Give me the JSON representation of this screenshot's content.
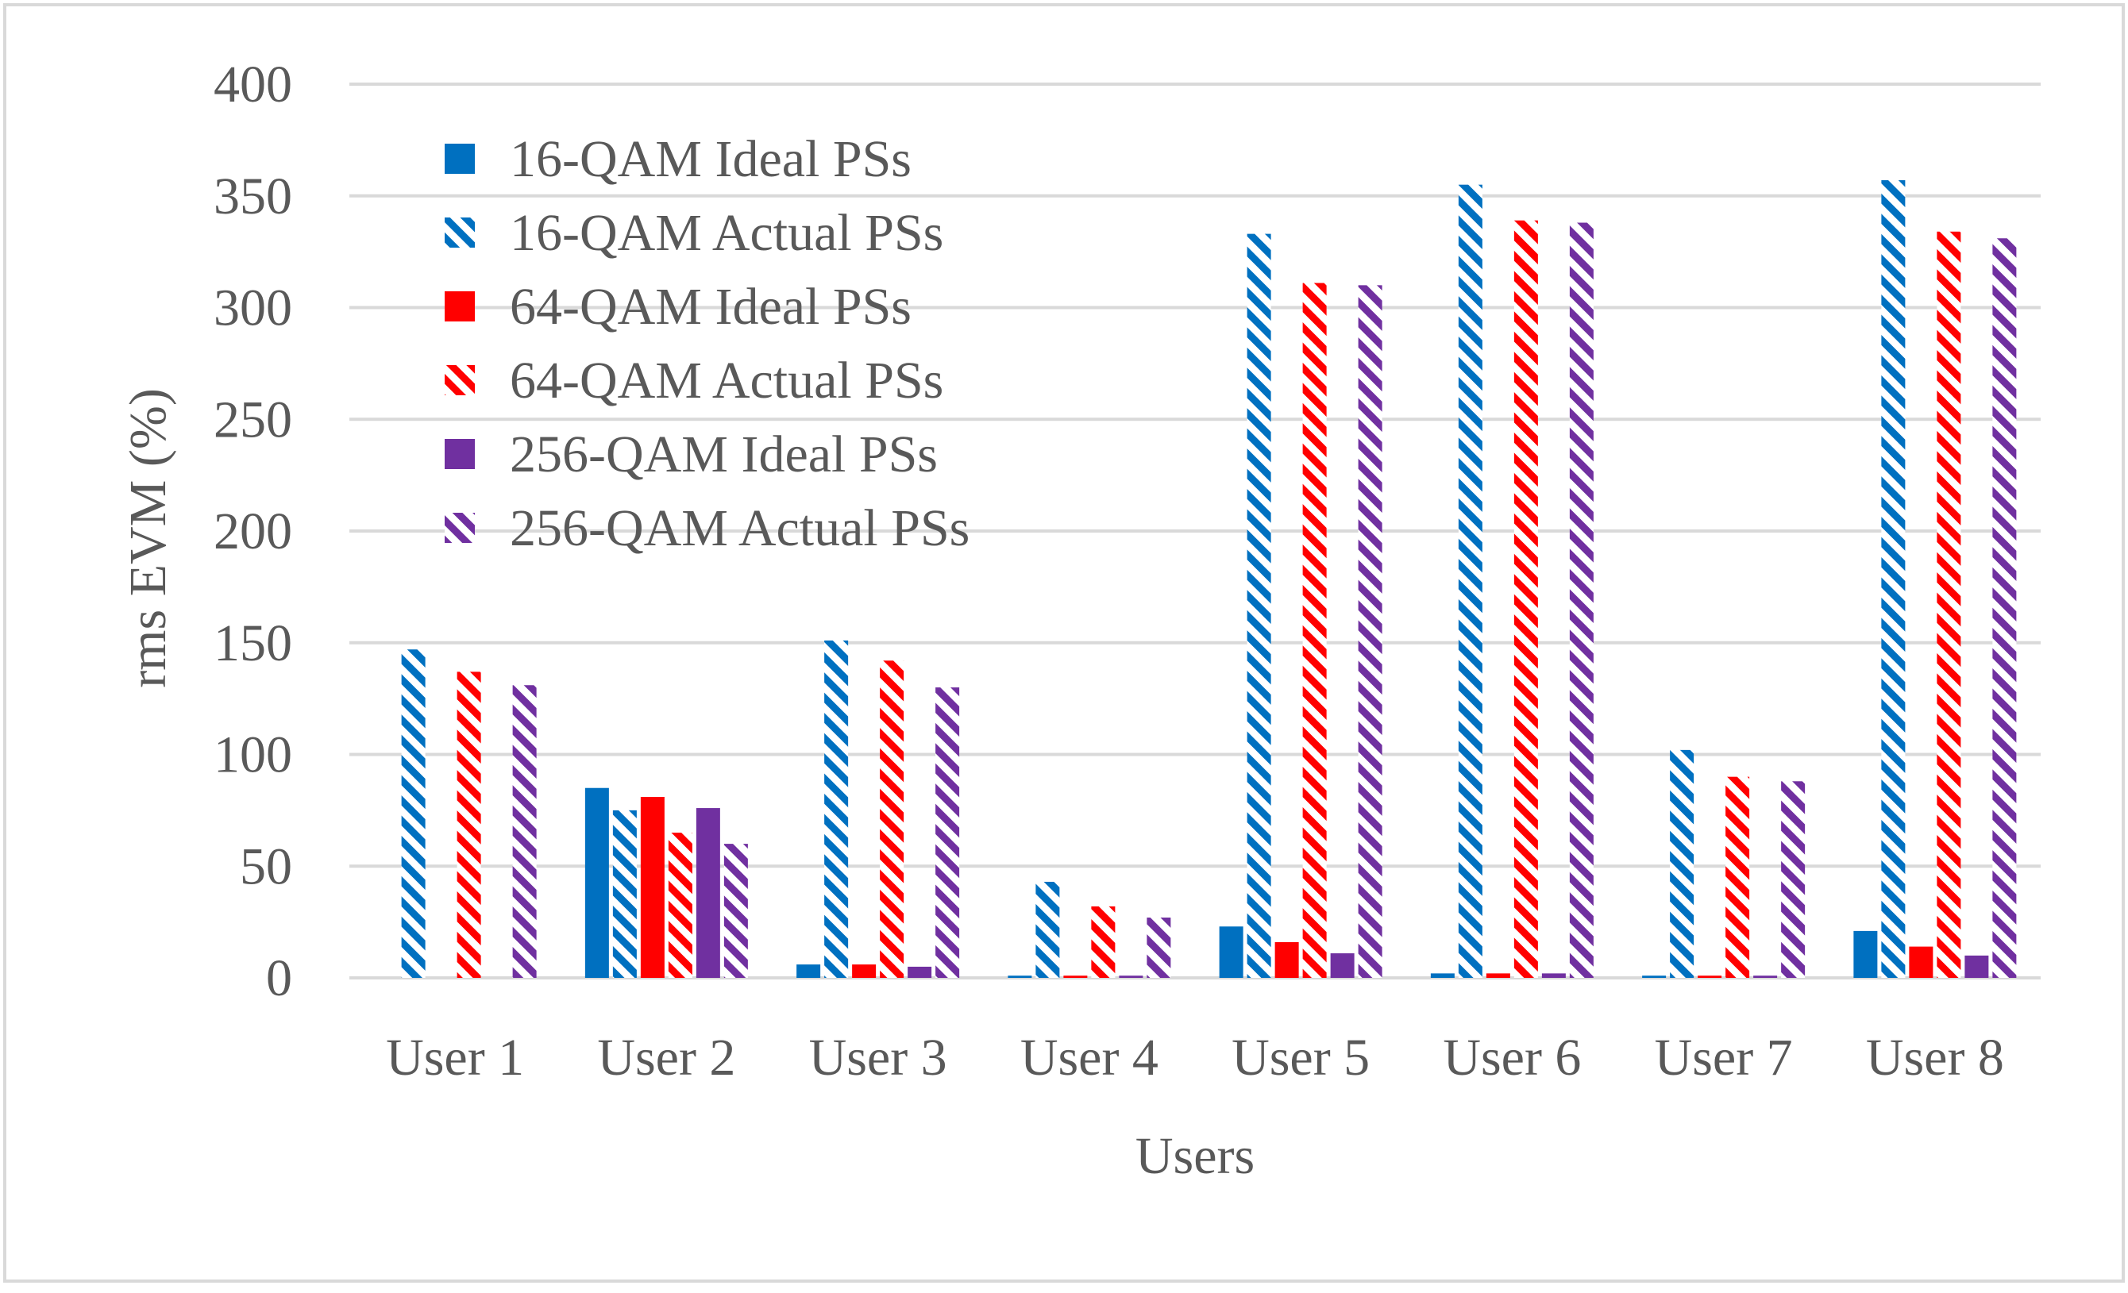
{
  "chart_data": {
    "type": "bar",
    "title": "",
    "xlabel": "Users",
    "ylabel": "rms EVM (%)",
    "ylim": [
      0,
      400
    ],
    "yticks": [
      "0",
      "50",
      "100",
      "150",
      "200",
      "250",
      "300",
      "350",
      "400"
    ],
    "grid": true,
    "legend_position": "top-left",
    "categories": [
      "User 1",
      "User 2",
      "User 3",
      "User 4",
      "User 5",
      "User 6",
      "User 7",
      "User 8"
    ],
    "series": [
      {
        "name": "16-QAM Ideal PSs",
        "color": "#0070C0",
        "pattern": "solid",
        "values": [
          0,
          85,
          6,
          1,
          23,
          2,
          1,
          21
        ]
      },
      {
        "name": "16-QAM Actual PSs",
        "color": "#0070C0",
        "pattern": "hatched",
        "values": [
          147,
          75,
          151,
          43,
          333,
          355,
          102,
          357
        ]
      },
      {
        "name": "64-QAM Ideal PSs",
        "color": "#FF0000",
        "pattern": "solid",
        "values": [
          0,
          81,
          6,
          1,
          16,
          2,
          1,
          14
        ]
      },
      {
        "name": "64-QAM Actual PSs",
        "color": "#FF0000",
        "pattern": "hatched",
        "values": [
          137,
          65,
          142,
          32,
          311,
          339,
          90,
          334
        ]
      },
      {
        "name": "256-QAM Ideal PSs",
        "color": "#7030A0",
        "pattern": "solid",
        "values": [
          0,
          76,
          5,
          1,
          11,
          2,
          1,
          10
        ]
      },
      {
        "name": "256-QAM Actual PSs",
        "color": "#7030A0",
        "pattern": "hatched",
        "values": [
          131,
          60,
          130,
          27,
          310,
          338,
          88,
          331
        ]
      }
    ]
  }
}
